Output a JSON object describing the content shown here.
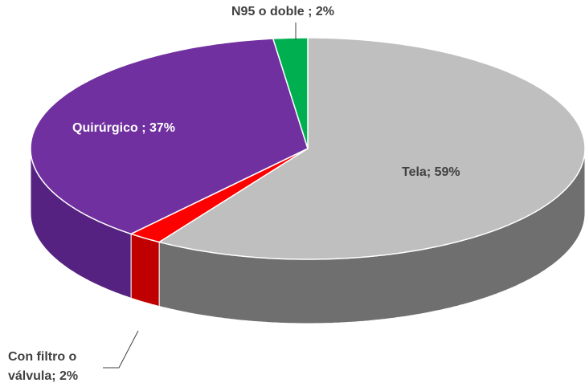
{
  "chart_data": {
    "type": "pie3d",
    "values": [
      59,
      2,
      37,
      2
    ],
    "value_labels": [
      "Tela; 59%",
      "Con filtro o válvula; 2%",
      "Quirúrgico ; 37%",
      "N95 o doble ; 2%"
    ],
    "colors": [
      "#bfbfbf",
      "#ff0000",
      "#7030a0",
      "#00b050"
    ],
    "side_colors": [
      "#6f6f6f",
      "#c00000",
      "#562282",
      "#008a3e"
    ]
  }
}
